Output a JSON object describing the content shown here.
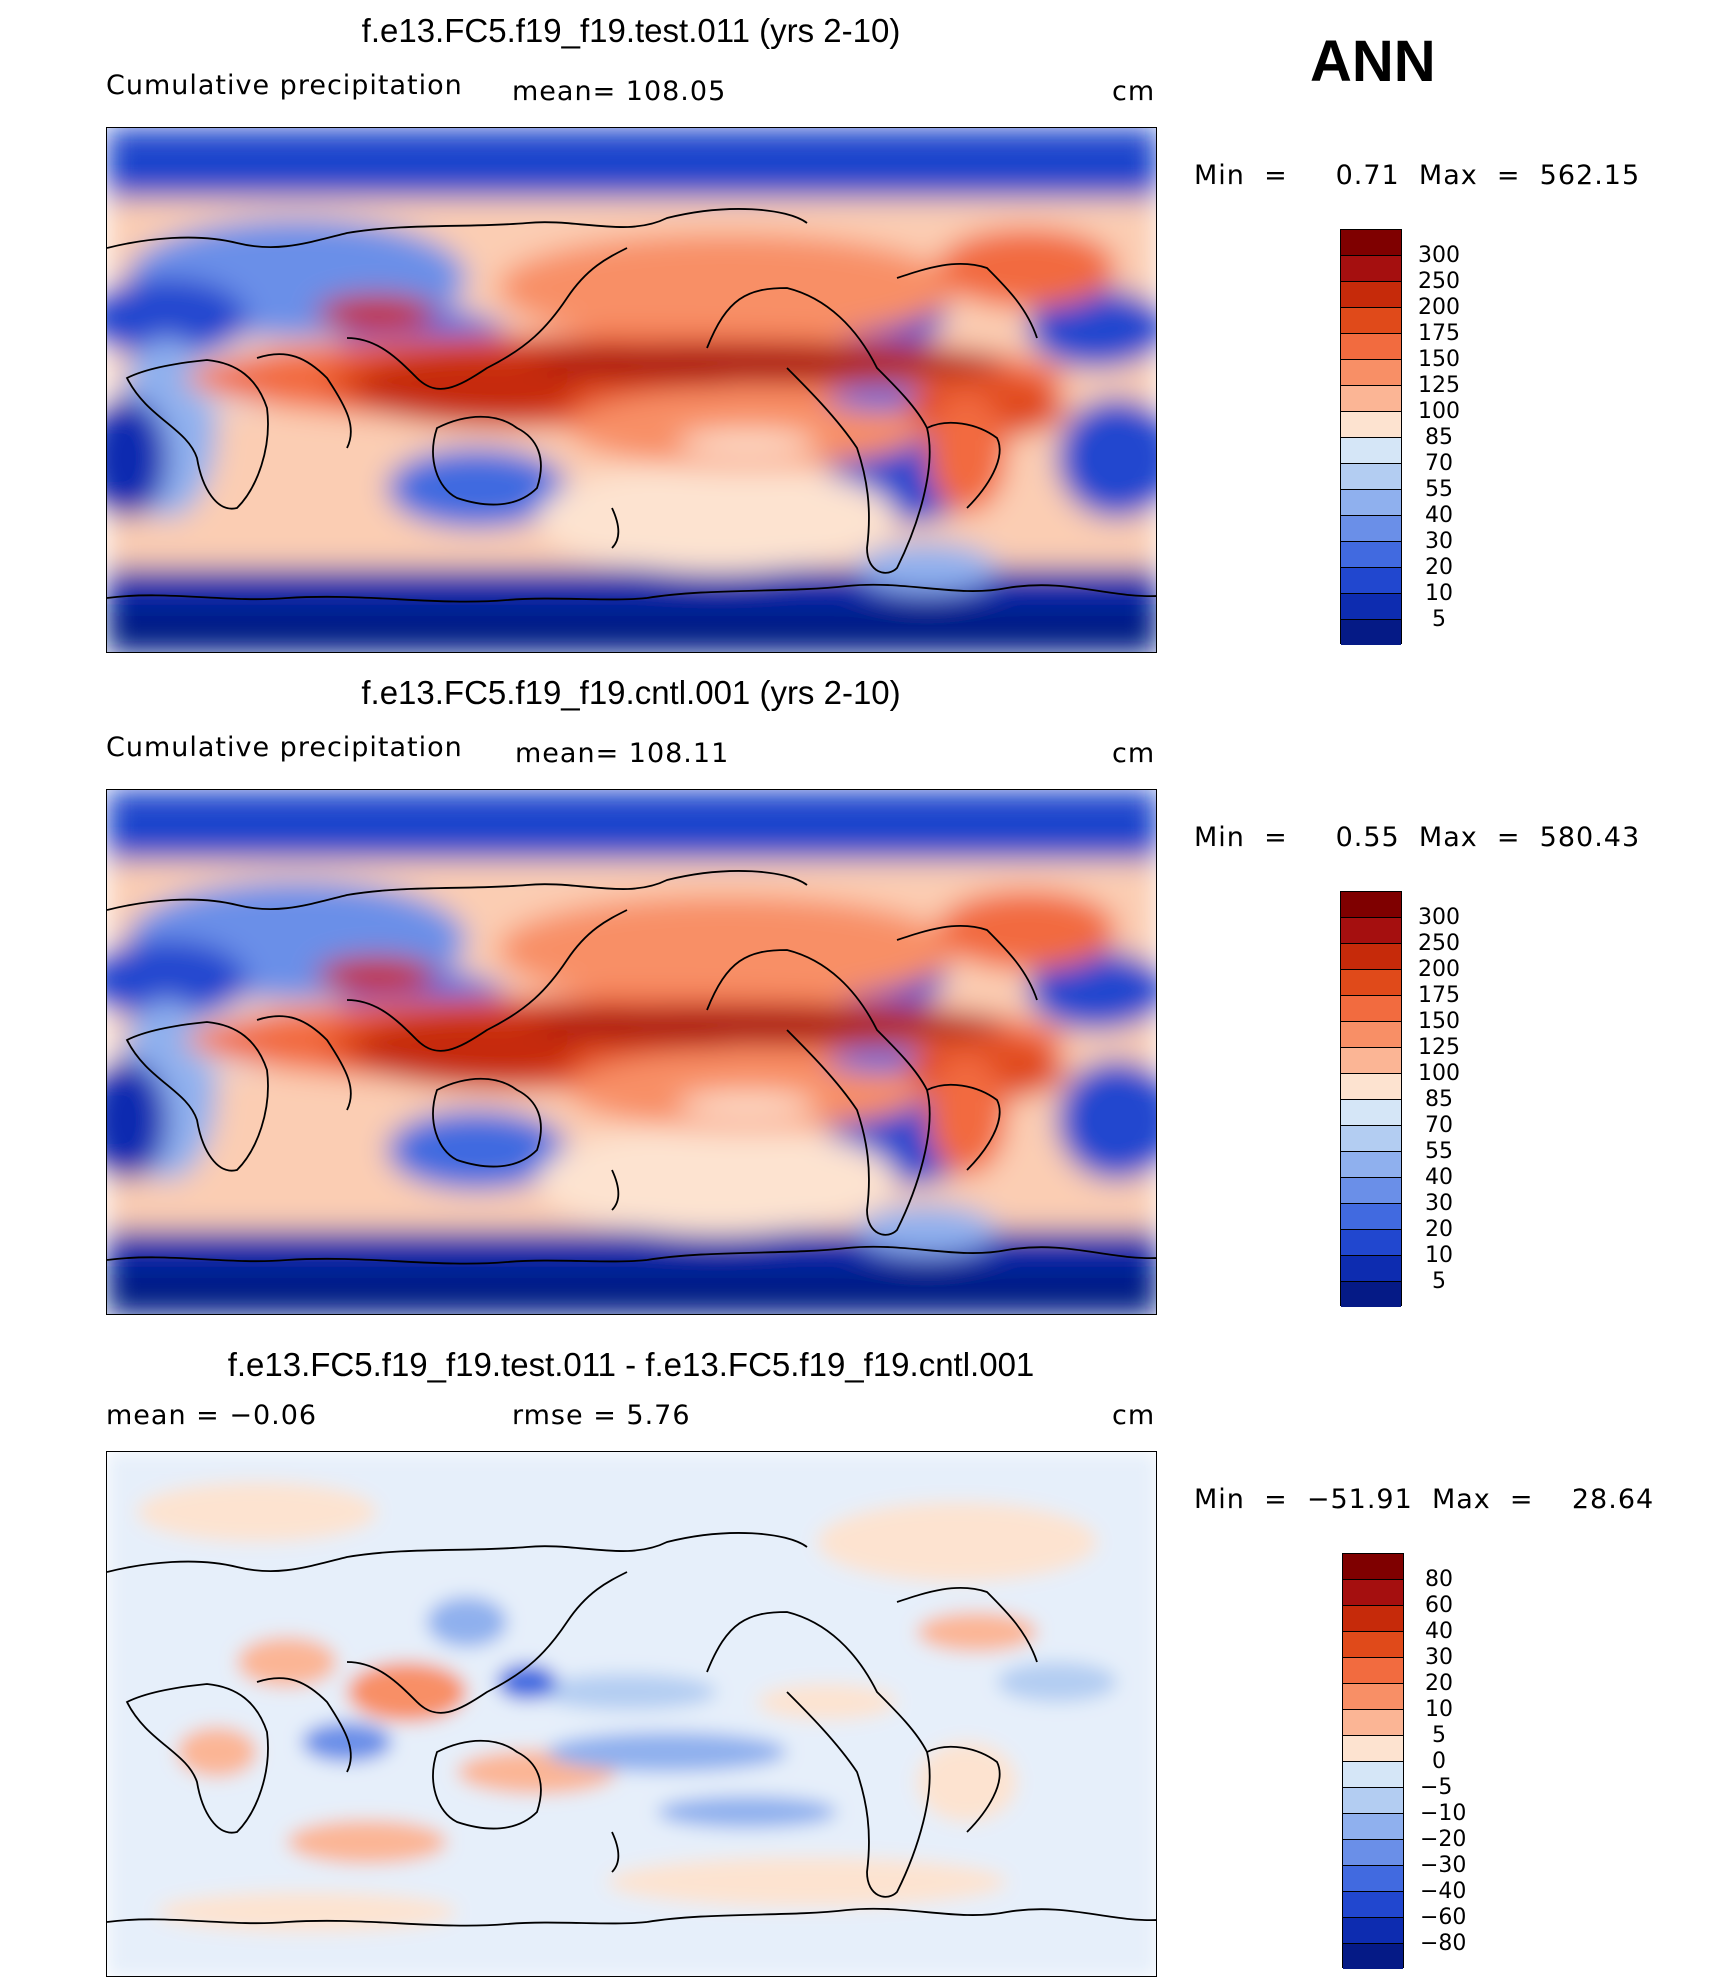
{
  "season": "ANN",
  "panels": [
    {
      "title": "f.e13.FC5.f19_f19.test.011 (yrs 2-10)",
      "left_label": "Cumulative precipitation",
      "mid_label": "mean=  108.05",
      "units": "cm",
      "minmax": "Min  =     0.71  Max  =  562.15",
      "colorbar_labels": [
        "300",
        "250",
        "200",
        "175",
        "150",
        "125",
        "100",
        "85",
        "70",
        "55",
        "40",
        "30",
        "20",
        "10",
        "5"
      ]
    },
    {
      "title": "f.e13.FC5.f19_f19.cntl.001 (yrs 2-10)",
      "left_label": "Cumulative precipitation",
      "mid_label": "mean=  108.11",
      "units": "cm",
      "minmax": "Min  =     0.55  Max  =  580.43",
      "colorbar_labels": [
        "300",
        "250",
        "200",
        "175",
        "150",
        "125",
        "100",
        "85",
        "70",
        "55",
        "40",
        "30",
        "20",
        "10",
        "5"
      ]
    },
    {
      "title": "f.e13.FC5.f19_f19.test.011 - f.e13.FC5.f19_f19.cntl.001",
      "left_label": "mean  =    −0.06",
      "mid_label": "rmse  =     5.76",
      "units": "cm",
      "minmax": "Min  =  −51.91  Max  =    28.64",
      "colorbar_labels": [
        "80",
        "60",
        "40",
        "30",
        "20",
        "10",
        "5",
        "0",
        "−5",
        "−10",
        "−20",
        "−30",
        "−40",
        "−60",
        "−80"
      ]
    }
  ],
  "colors": {
    "precip_scale": [
      "#7f0000",
      "#a50f0f",
      "#c62a0a",
      "#e04a1a",
      "#f26b3f",
      "#f88f66",
      "#fbb595",
      "#fde3d0",
      "#d5e6f7",
      "#b3cdf2",
      "#8fb0ee",
      "#6a8fe8",
      "#416ae0",
      "#2147cf",
      "#0d2cb0",
      "#051a86"
    ],
    "diff_scale": [
      "#7f0000",
      "#a50f0f",
      "#c62a0a",
      "#e04a1a",
      "#f26b3f",
      "#f88f66",
      "#fbb595",
      "#fde3d0",
      "#d5e6f7",
      "#b3cdf2",
      "#8fb0ee",
      "#6a8fe8",
      "#416ae0",
      "#2147cf",
      "#0d2cb0",
      "#051a86"
    ]
  }
}
